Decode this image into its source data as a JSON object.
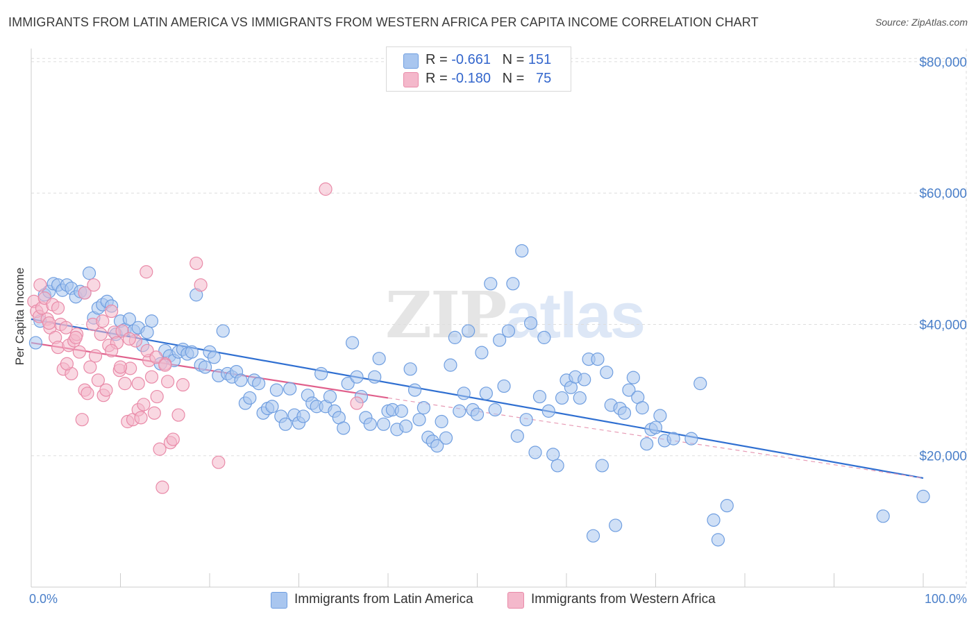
{
  "header": {
    "title": "IMMIGRANTS FROM LATIN AMERICA VS IMMIGRANTS FROM WESTERN AFRICA PER CAPITA INCOME CORRELATION CHART",
    "source": "Source: ZipAtlas.com"
  },
  "legend": {
    "r_label": "R =",
    "n_label": "N =",
    "rows": [
      {
        "r": "-0.661",
        "n": "151",
        "color": "#a9c6ef"
      },
      {
        "r": "-0.180",
        "n": "75",
        "color": "#f4b8cb"
      }
    ]
  },
  "watermark": {
    "zip": "ZIP",
    "atlas": "atlas"
  },
  "chart_data": {
    "type": "scatter",
    "title": "IMMIGRANTS FROM LATIN AMERICA VS IMMIGRANTS FROM WESTERN AFRICA PER CAPITA INCOME CORRELATION CHART",
    "xlabel": "",
    "ylabel": "Per Capita Income",
    "xlim": [
      0,
      100
    ],
    "ylim": [
      0,
      82000
    ],
    "x_tick_labels": [
      "0.0%",
      "100.0%"
    ],
    "y_ticks": [
      20000,
      40000,
      60000,
      80000
    ],
    "y_tick_labels": [
      "$20,000",
      "$40,000",
      "$60,000",
      "$80,000"
    ],
    "grid": true,
    "legend_position": "top-center",
    "series": [
      {
        "name": "Immigrants from Latin America",
        "color": "#6f9ee0",
        "fill": "#a9c6ef",
        "r": -0.661,
        "n": 151,
        "trend": {
          "x": [
            0,
            100
          ],
          "y": [
            40800,
            16600
          ]
        },
        "points": [
          [
            0.5,
            37200
          ],
          [
            1,
            40500
          ],
          [
            1.5,
            44500
          ],
          [
            2,
            45000
          ],
          [
            2.5,
            46200
          ],
          [
            3,
            46000
          ],
          [
            3.5,
            45200
          ],
          [
            4,
            46000
          ],
          [
            4.5,
            45500
          ],
          [
            5,
            44200
          ],
          [
            5.5,
            45000
          ],
          [
            6,
            44800
          ],
          [
            6.5,
            47800
          ],
          [
            7,
            41000
          ],
          [
            7.5,
            42500
          ],
          [
            8,
            43000
          ],
          [
            8.5,
            43500
          ],
          [
            9,
            42800
          ],
          [
            9.5,
            38500
          ],
          [
            10,
            40500
          ],
          [
            10.5,
            39200
          ],
          [
            11,
            40800
          ],
          [
            11.5,
            39000
          ],
          [
            12,
            39500
          ],
          [
            12.5,
            36800
          ],
          [
            13,
            38800
          ],
          [
            13.5,
            40500
          ],
          [
            14.5,
            34000
          ],
          [
            15,
            36000
          ],
          [
            15.5,
            35200
          ],
          [
            16,
            34500
          ],
          [
            16.5,
            35800
          ],
          [
            17,
            36200
          ],
          [
            17.5,
            35500
          ],
          [
            18,
            35800
          ],
          [
            18.5,
            44500
          ],
          [
            19,
            33800
          ],
          [
            19.5,
            33500
          ],
          [
            20,
            35800
          ],
          [
            20.5,
            35000
          ],
          [
            21,
            32200
          ],
          [
            21.5,
            39000
          ],
          [
            22,
            32500
          ],
          [
            22.5,
            32000
          ],
          [
            23,
            32800
          ],
          [
            23.5,
            31500
          ],
          [
            24,
            28000
          ],
          [
            24.5,
            28800
          ],
          [
            25,
            31500
          ],
          [
            25.5,
            31000
          ],
          [
            26,
            26500
          ],
          [
            26.5,
            27200
          ],
          [
            27,
            27500
          ],
          [
            27.5,
            30000
          ],
          [
            28,
            26000
          ],
          [
            28.5,
            24800
          ],
          [
            29,
            30200
          ],
          [
            29.5,
            26200
          ],
          [
            30,
            25000
          ],
          [
            30.5,
            26000
          ],
          [
            31,
            29200
          ],
          [
            31.5,
            28000
          ],
          [
            32,
            27500
          ],
          [
            32.5,
            32500
          ],
          [
            33,
            27500
          ],
          [
            33.5,
            29000
          ],
          [
            34,
            26800
          ],
          [
            34.5,
            25800
          ],
          [
            35,
            24200
          ],
          [
            35.5,
            31000
          ],
          [
            36,
            37200
          ],
          [
            36.5,
            32000
          ],
          [
            37,
            29000
          ],
          [
            37.5,
            25800
          ],
          [
            38,
            24800
          ],
          [
            38.5,
            32000
          ],
          [
            39,
            34800
          ],
          [
            39.5,
            24800
          ],
          [
            40,
            26800
          ],
          [
            40.5,
            27000
          ],
          [
            41,
            24000
          ],
          [
            41.5,
            26800
          ],
          [
            42,
            24500
          ],
          [
            42.5,
            33200
          ],
          [
            43,
            30000
          ],
          [
            43.5,
            25500
          ],
          [
            44,
            27300
          ],
          [
            44.5,
            22800
          ],
          [
            45,
            22200
          ],
          [
            45.5,
            21500
          ],
          [
            46,
            25200
          ],
          [
            46.5,
            22700
          ],
          [
            47,
            33800
          ],
          [
            47.5,
            38000
          ],
          [
            48,
            26800
          ],
          [
            48.5,
            29500
          ],
          [
            49,
            39000
          ],
          [
            49.5,
            27000
          ],
          [
            50,
            26300
          ],
          [
            50.5,
            35700
          ],
          [
            51,
            29500
          ],
          [
            51.5,
            46200
          ],
          [
            52,
            27000
          ],
          [
            52.5,
            37600
          ],
          [
            53,
            30600
          ],
          [
            53.5,
            39000
          ],
          [
            54,
            46200
          ],
          [
            54.5,
            23000
          ],
          [
            55,
            51200
          ],
          [
            55.5,
            25500
          ],
          [
            56,
            40200
          ],
          [
            56.5,
            20500
          ],
          [
            57,
            29000
          ],
          [
            57.5,
            38000
          ],
          [
            58,
            26800
          ],
          [
            58.5,
            20200
          ],
          [
            59,
            18500
          ],
          [
            59.5,
            28800
          ],
          [
            60,
            31500
          ],
          [
            60.5,
            30400
          ],
          [
            61,
            32000
          ],
          [
            61.5,
            28800
          ],
          [
            62,
            31600
          ],
          [
            62.5,
            34700
          ],
          [
            63,
            7800
          ],
          [
            63.5,
            34700
          ],
          [
            64,
            18500
          ],
          [
            64.5,
            32700
          ],
          [
            65,
            27700
          ],
          [
            65.5,
            9400
          ],
          [
            66,
            27200
          ],
          [
            66.5,
            26500
          ],
          [
            67,
            30000
          ],
          [
            67.5,
            31900
          ],
          [
            68,
            28900
          ],
          [
            68.5,
            27300
          ],
          [
            69,
            21800
          ],
          [
            69.5,
            24000
          ],
          [
            70,
            24300
          ],
          [
            70.5,
            26100
          ],
          [
            71,
            22300
          ],
          [
            72,
            22600
          ],
          [
            74,
            22600
          ],
          [
            75,
            31000
          ],
          [
            76.5,
            10200
          ],
          [
            77,
            7200
          ],
          [
            78,
            12400
          ],
          [
            95.5,
            10800
          ],
          [
            100,
            13800
          ]
        ]
      },
      {
        "name": "Immigrants from Western Africa",
        "color": "#e98aa8",
        "fill": "#f4b8cb",
        "r": -0.18,
        "n": 75,
        "trend": {
          "x": [
            0,
            40
          ],
          "y": [
            37200,
            28800
          ]
        },
        "trend_extension": {
          "x": [
            40,
            100
          ],
          "y": [
            28800,
            16600
          ]
        },
        "points": [
          [
            0.3,
            43500
          ],
          [
            0.6,
            42000
          ],
          [
            0.9,
            41200
          ],
          [
            1.2,
            42500
          ],
          [
            1.5,
            44000
          ],
          [
            1.8,
            40800
          ],
          [
            2.1,
            39500
          ],
          [
            2.4,
            43000
          ],
          [
            2.7,
            38000
          ],
          [
            3,
            36500
          ],
          [
            3.3,
            40000
          ],
          [
            3.6,
            33200
          ],
          [
            3.9,
            39500
          ],
          [
            4.2,
            36800
          ],
          [
            4.5,
            32500
          ],
          [
            4.8,
            37500
          ],
          [
            5.1,
            38500
          ],
          [
            5.4,
            35800
          ],
          [
            5.7,
            25500
          ],
          [
            6,
            30000
          ],
          [
            6.3,
            29500
          ],
          [
            6.6,
            33500
          ],
          [
            6.9,
            40000
          ],
          [
            7.2,
            35200
          ],
          [
            7.5,
            31500
          ],
          [
            7.8,
            38500
          ],
          [
            8.1,
            29200
          ],
          [
            8.4,
            30000
          ],
          [
            8.7,
            36800
          ],
          [
            9,
            42000
          ],
          [
            9.3,
            38800
          ],
          [
            9.6,
            37200
          ],
          [
            9.9,
            33000
          ],
          [
            10.2,
            39000
          ],
          [
            10.5,
            31000
          ],
          [
            10.8,
            25200
          ],
          [
            11.1,
            33300
          ],
          [
            11.4,
            25500
          ],
          [
            11.7,
            37500
          ],
          [
            12,
            27000
          ],
          [
            12.3,
            25800
          ],
          [
            12.6,
            27800
          ],
          [
            12.9,
            48000
          ],
          [
            13.2,
            34500
          ],
          [
            13.5,
            32000
          ],
          [
            13.8,
            26500
          ],
          [
            14.1,
            29000
          ],
          [
            14.4,
            21000
          ],
          [
            14.7,
            15200
          ],
          [
            15,
            34000
          ],
          [
            15.3,
            31300
          ],
          [
            15.6,
            22000
          ],
          [
            15.9,
            22500
          ],
          [
            16.5,
            26200
          ],
          [
            17,
            30800
          ],
          [
            18.5,
            49300
          ],
          [
            19,
            46000
          ],
          [
            21,
            19000
          ],
          [
            33,
            60600
          ],
          [
            36.5,
            28000
          ],
          [
            1,
            46000
          ],
          [
            2,
            40200
          ],
          [
            3,
            42500
          ],
          [
            4,
            34000
          ],
          [
            5,
            38000
          ],
          [
            6,
            44800
          ],
          [
            7,
            46000
          ],
          [
            8,
            40500
          ],
          [
            9,
            36000
          ],
          [
            10,
            33500
          ],
          [
            11,
            37800
          ],
          [
            12,
            31000
          ],
          [
            13,
            36000
          ],
          [
            14,
            35000
          ],
          [
            15,
            33800
          ]
        ]
      }
    ]
  },
  "bottom_legend": [
    {
      "label": "Immigrants from Latin America",
      "color": "#a9c6ef",
      "border": "#6f9ee0"
    },
    {
      "label": "Immigrants from Western Africa",
      "color": "#f4b8cb",
      "border": "#e98aa8"
    }
  ]
}
